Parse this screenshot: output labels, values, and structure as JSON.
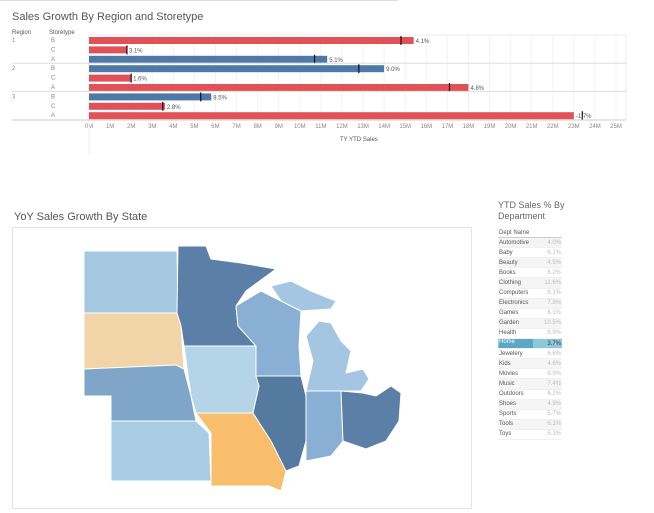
{
  "top_chart": {
    "title": "Sales Growth By Region and Storetype",
    "col_region": "Region",
    "col_storetype": "Storetype",
    "axis_title": "TY YTD Sales",
    "chart_data": {
      "type": "bar",
      "orientation": "horizontal",
      "title": "Sales Growth By Region and Storetype",
      "xlabel": "TY YTD Sales",
      "xlim": [
        0,
        25
      ],
      "ticks": [
        "0M",
        "1M",
        "2M",
        "3M",
        "4M",
        "5M",
        "6M",
        "7M",
        "8M",
        "9M",
        "10M",
        "11M",
        "12M",
        "13M",
        "14M",
        "15M",
        "16M",
        "17M",
        "18M",
        "19M",
        "20M",
        "21M",
        "22M",
        "23M",
        "24M",
        "25M"
      ],
      "rows": [
        {
          "region": "1",
          "storetype": "B",
          "value": 15.4,
          "target": 14.8,
          "label": "4.1%",
          "color": "#e05257"
        },
        {
          "region": "",
          "storetype": "C",
          "value": 1.8,
          "target": 1.8,
          "label": "3.1%",
          "color": "#e05257"
        },
        {
          "region": "",
          "storetype": "A",
          "value": 11.3,
          "target": 10.7,
          "label": "5.1%",
          "color": "#4e79a7"
        },
        {
          "region": "2",
          "storetype": "B",
          "value": 14.0,
          "target": 12.8,
          "label": "9.0%",
          "color": "#4e79a7"
        },
        {
          "region": "",
          "storetype": "C",
          "value": 2.0,
          "target": 2.0,
          "label": "1.6%",
          "color": "#e05257"
        },
        {
          "region": "",
          "storetype": "A",
          "value": 18.0,
          "target": 17.1,
          "label": "4.8%",
          "color": "#e05257"
        },
        {
          "region": "3",
          "storetype": "B",
          "value": 5.8,
          "target": 5.3,
          "label": "8.5%",
          "color": "#4e79a7"
        },
        {
          "region": "",
          "storetype": "C",
          "value": 3.6,
          "target": 3.5,
          "label": "2.8%",
          "color": "#e05257"
        },
        {
          "region": "",
          "storetype": "A",
          "value": 23.0,
          "target": 23.4,
          "label": "-1.7%",
          "color": "#e05257"
        }
      ]
    }
  },
  "map": {
    "title": "YoY Sales Growth By State",
    "states": [
      {
        "name": "north-dakota",
        "color": "#a3c8e0"
      },
      {
        "name": "south-dakota",
        "color": "#f2d4a9"
      },
      {
        "name": "nebraska",
        "color": "#7fa6c9"
      },
      {
        "name": "kansas",
        "color": "#a9cde4"
      },
      {
        "name": "minnesota",
        "color": "#5b7fa6"
      },
      {
        "name": "iowa",
        "color": "#b4d4e8"
      },
      {
        "name": "missouri",
        "color": "#f9be6b"
      },
      {
        "name": "wisconsin",
        "color": "#8aafd4"
      },
      {
        "name": "illinois",
        "color": "#557a9f"
      },
      {
        "name": "michigan",
        "color": "#a4c6e3"
      },
      {
        "name": "indiana",
        "color": "#8aafd4"
      },
      {
        "name": "ohio",
        "color": "#5b7fa6"
      }
    ]
  },
  "dept": {
    "title": "YTD Sales % By Department",
    "header": "Dept Name",
    "rows": [
      {
        "name": "Automotive",
        "value": "4.0%"
      },
      {
        "name": "Baby",
        "value": "6.1%"
      },
      {
        "name": "Beauty",
        "value": "4.5%"
      },
      {
        "name": "Books",
        "value": "6.2%"
      },
      {
        "name": "Clothing",
        "value": "11.6%"
      },
      {
        "name": "Computers",
        "value": "6.1%"
      },
      {
        "name": "Electronics",
        "value": "7.8%"
      },
      {
        "name": "Games",
        "value": "6.1%"
      },
      {
        "name": "Garden",
        "value": "10.5%"
      },
      {
        "name": "Health",
        "value": "6.9%"
      },
      {
        "name": "Home",
        "value": "3.7%",
        "selected": true
      },
      {
        "name": "Jewelery",
        "value": "6.6%"
      },
      {
        "name": "Kids",
        "value": "4.6%"
      },
      {
        "name": "Movies",
        "value": "6.9%"
      },
      {
        "name": "Music",
        "value": "7.4%"
      },
      {
        "name": "Outdoors",
        "value": "6.2%"
      },
      {
        "name": "Shoes",
        "value": "4.9%"
      },
      {
        "name": "Sports",
        "value": "5.7%"
      },
      {
        "name": "Tools",
        "value": "6.1%"
      },
      {
        "name": "Toys",
        "value": "5.3%"
      }
    ]
  }
}
